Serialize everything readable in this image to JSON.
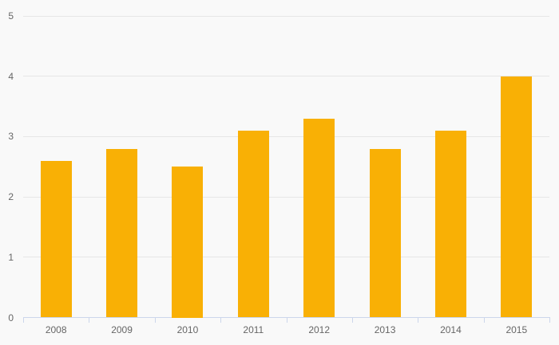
{
  "chart_data": {
    "type": "bar",
    "title": "",
    "xlabel": "",
    "ylabel": "",
    "categories": [
      "2008",
      "2009",
      "2010",
      "2011",
      "2012",
      "2013",
      "2014",
      "2015"
    ],
    "values": [
      2.6,
      2.8,
      2.5,
      3.1,
      3.3,
      2.8,
      3.1,
      4.0
    ],
    "yticks": [
      "0",
      "1",
      "2",
      "3",
      "4",
      "5"
    ],
    "ylim": [
      0,
      5
    ],
    "grid": true,
    "legend_position": "none",
    "colors": {
      "bar": "#f9b005",
      "background": "#f9f9f9",
      "gridline": "#e6e6e6",
      "axis": "#ccd6eb",
      "text": "#666666"
    }
  }
}
